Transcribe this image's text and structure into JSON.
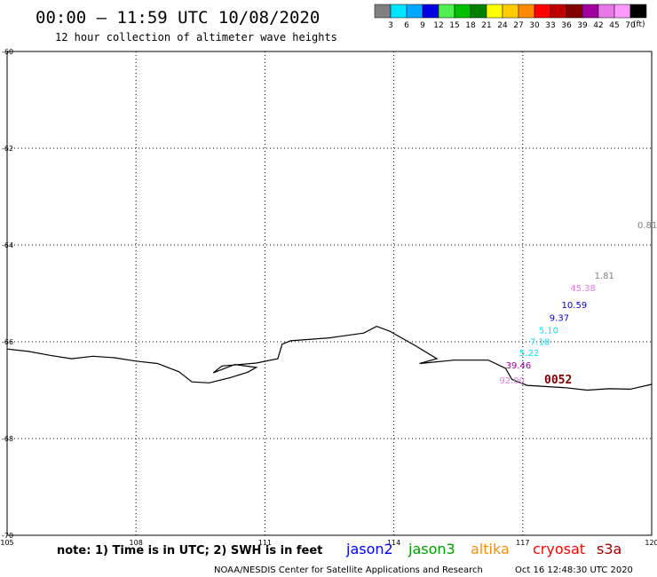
{
  "header": {
    "title": "00:00 – 11:59 UTC 10/08/2020",
    "subtitle": "12 hour collection of altimeter wave heights"
  },
  "colorbar": {
    "labels": [
      "3",
      "6",
      "9",
      "12",
      "15",
      "18",
      "21",
      "24",
      "27",
      "30",
      "33",
      "36",
      "39",
      "42",
      "45",
      "70"
    ],
    "unit": "(ft)",
    "colors": [
      "#808080",
      "#00e5ff",
      "#00a8ff",
      "#0000e0",
      "#50f050",
      "#00c000",
      "#008000",
      "#ffff00",
      "#ffcc00",
      "#ff8c00",
      "#ff0000",
      "#c00000",
      "#800000",
      "#a000a0",
      "#e878e8",
      "#ff99ff",
      "#000000"
    ]
  },
  "footer": {
    "note": "note: 1) Time is in UTC; 2) SWH is in feet",
    "credit": "NOAA/NESDIS Center for Satellite Applications and Research",
    "timestamp": "Oct 16 12:48:30 UTC 2020"
  },
  "legend": [
    {
      "name": "jason2",
      "color": "#0000ff"
    },
    {
      "name": "jason3",
      "color": "#00a000"
    },
    {
      "name": "altika",
      "color": "#ff8c00"
    },
    {
      "name": "cryosat",
      "color": "#ff0000"
    },
    {
      "name": "s3a",
      "color": "#a00000"
    }
  ],
  "chart_data": {
    "type": "scatter",
    "xlim": [
      105,
      120
    ],
    "ylim": [
      -70,
      -60
    ],
    "x_ticks": [
      "105",
      "108",
      "111",
      "114",
      "117",
      "120"
    ],
    "y_ticks": [
      "-60",
      "-62",
      "-64",
      "-66",
      "-68",
      "-70"
    ],
    "grid": true,
    "points": [
      {
        "lon": 119.9,
        "lat": -63.65,
        "label": "0.81",
        "color": "#808080"
      },
      {
        "lon": 118.9,
        "lat": -64.7,
        "label": "1.81",
        "color": "#808080"
      },
      {
        "lon": 118.4,
        "lat": -64.95,
        "label": "45.38",
        "color": "#e878e8"
      },
      {
        "lon": 118.2,
        "lat": -65.3,
        "label": "10.59",
        "color": "#0000e0"
      },
      {
        "lon": 117.85,
        "lat": -65.57,
        "label": "9.37",
        "color": "#0000e0"
      },
      {
        "lon": 117.6,
        "lat": -65.83,
        "label": "5.10",
        "color": "#00e5ff"
      },
      {
        "lon": 117.4,
        "lat": -66.06,
        "label": "7.18",
        "color": "#00e5ff"
      },
      {
        "lon": 117.15,
        "lat": -66.29,
        "label": "5.22",
        "color": "#00e5ff"
      },
      {
        "lon": 116.9,
        "lat": -66.55,
        "label": "39.46",
        "color": "#a000a0"
      },
      {
        "lon": 116.75,
        "lat": -66.86,
        "label": "92.00",
        "color": "#e878e8"
      }
    ],
    "track_label": {
      "lon": 117.5,
      "lat": -66.86,
      "text": "0052",
      "color": "#800000"
    },
    "coastline": [
      [
        105.0,
        -66.15
      ],
      [
        105.5,
        -66.2
      ],
      [
        106.0,
        -66.28
      ],
      [
        106.5,
        -66.35
      ],
      [
        107.0,
        -66.3
      ],
      [
        107.5,
        -66.33
      ],
      [
        108.0,
        -66.4
      ],
      [
        108.5,
        -66.45
      ],
      [
        109.0,
        -66.62
      ],
      [
        109.3,
        -66.83
      ],
      [
        109.7,
        -66.85
      ],
      [
        110.2,
        -66.74
      ],
      [
        110.6,
        -66.63
      ],
      [
        110.8,
        -66.53
      ],
      [
        110.3,
        -66.47
      ],
      [
        109.8,
        -66.64
      ],
      [
        110.0,
        -66.5
      ],
      [
        110.8,
        -66.44
      ],
      [
        111.3,
        -66.35
      ],
      [
        111.4,
        -66.05
      ],
      [
        111.6,
        -65.98
      ],
      [
        112.5,
        -65.92
      ],
      [
        113.3,
        -65.82
      ],
      [
        113.6,
        -65.68
      ],
      [
        113.9,
        -65.78
      ],
      [
        114.5,
        -66.08
      ],
      [
        115.0,
        -66.35
      ],
      [
        114.6,
        -66.45
      ],
      [
        115.4,
        -66.38
      ],
      [
        116.2,
        -66.38
      ],
      [
        116.6,
        -66.55
      ],
      [
        116.75,
        -66.78
      ],
      [
        117.1,
        -66.9
      ],
      [
        118.0,
        -66.95
      ],
      [
        118.5,
        -67.0
      ],
      [
        119.0,
        -66.97
      ],
      [
        119.5,
        -66.98
      ],
      [
        120.0,
        -66.88
      ]
    ]
  }
}
